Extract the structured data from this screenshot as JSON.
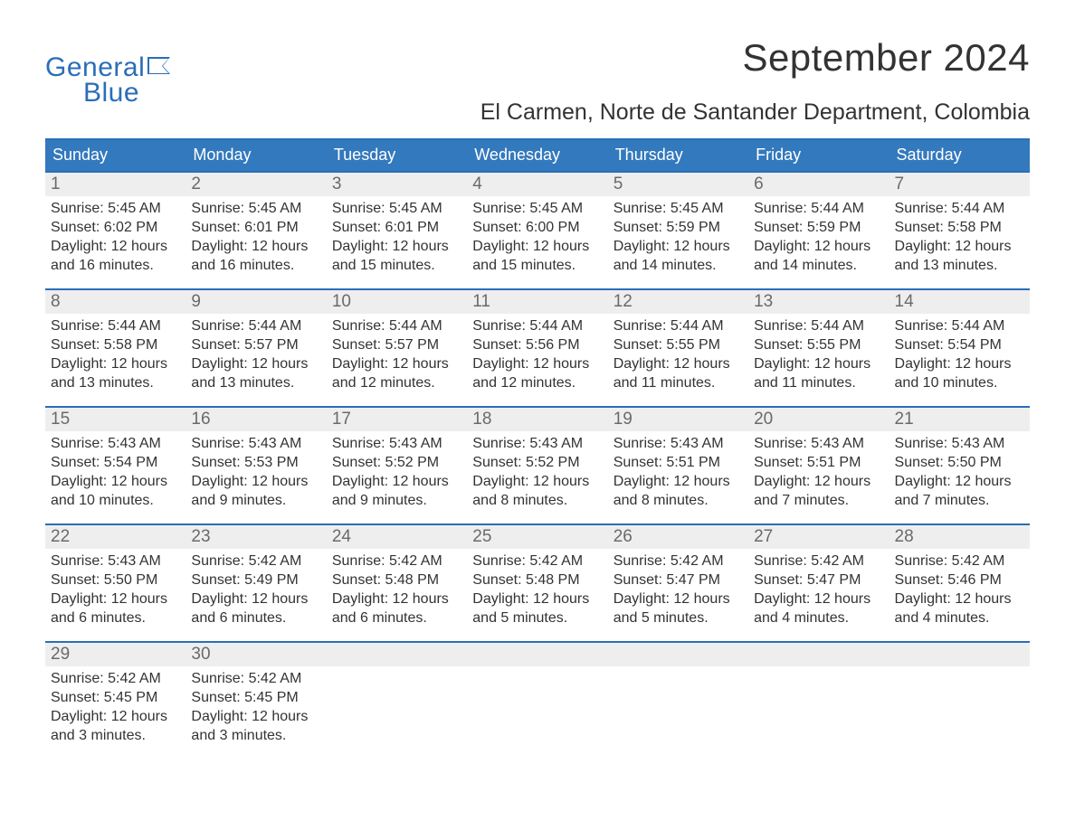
{
  "brand": {
    "name1": "General",
    "name2": "Blue",
    "color": "#2a6eb8"
  },
  "title": "September 2024",
  "location": "El Carmen, Norte de Santander Department, Colombia",
  "colors": {
    "header_bg": "#3379bd",
    "header_text": "#ffffff",
    "border": "#2a6eb8",
    "daynum_bg": "#eeeeee",
    "daynum_text": "#6a6a6a",
    "body_text": "#333333",
    "page_bg": "#ffffff"
  },
  "typography": {
    "title_fontsize": 42,
    "location_fontsize": 25,
    "weekday_fontsize": 18,
    "daynum_fontsize": 19,
    "body_fontsize": 16,
    "logo_fontsize": 30
  },
  "weekdays": [
    "Sunday",
    "Monday",
    "Tuesday",
    "Wednesday",
    "Thursday",
    "Friday",
    "Saturday"
  ],
  "weeks": [
    [
      {
        "n": "1",
        "sunrise": "Sunrise: 5:45 AM",
        "sunset": "Sunset: 6:02 PM",
        "d1": "Daylight: 12 hours",
        "d2": "and 16 minutes."
      },
      {
        "n": "2",
        "sunrise": "Sunrise: 5:45 AM",
        "sunset": "Sunset: 6:01 PM",
        "d1": "Daylight: 12 hours",
        "d2": "and 16 minutes."
      },
      {
        "n": "3",
        "sunrise": "Sunrise: 5:45 AM",
        "sunset": "Sunset: 6:01 PM",
        "d1": "Daylight: 12 hours",
        "d2": "and 15 minutes."
      },
      {
        "n": "4",
        "sunrise": "Sunrise: 5:45 AM",
        "sunset": "Sunset: 6:00 PM",
        "d1": "Daylight: 12 hours",
        "d2": "and 15 minutes."
      },
      {
        "n": "5",
        "sunrise": "Sunrise: 5:45 AM",
        "sunset": "Sunset: 5:59 PM",
        "d1": "Daylight: 12 hours",
        "d2": "and 14 minutes."
      },
      {
        "n": "6",
        "sunrise": "Sunrise: 5:44 AM",
        "sunset": "Sunset: 5:59 PM",
        "d1": "Daylight: 12 hours",
        "d2": "and 14 minutes."
      },
      {
        "n": "7",
        "sunrise": "Sunrise: 5:44 AM",
        "sunset": "Sunset: 5:58 PM",
        "d1": "Daylight: 12 hours",
        "d2": "and 13 minutes."
      }
    ],
    [
      {
        "n": "8",
        "sunrise": "Sunrise: 5:44 AM",
        "sunset": "Sunset: 5:58 PM",
        "d1": "Daylight: 12 hours",
        "d2": "and 13 minutes."
      },
      {
        "n": "9",
        "sunrise": "Sunrise: 5:44 AM",
        "sunset": "Sunset: 5:57 PM",
        "d1": "Daylight: 12 hours",
        "d2": "and 13 minutes."
      },
      {
        "n": "10",
        "sunrise": "Sunrise: 5:44 AM",
        "sunset": "Sunset: 5:57 PM",
        "d1": "Daylight: 12 hours",
        "d2": "and 12 minutes."
      },
      {
        "n": "11",
        "sunrise": "Sunrise: 5:44 AM",
        "sunset": "Sunset: 5:56 PM",
        "d1": "Daylight: 12 hours",
        "d2": "and 12 minutes."
      },
      {
        "n": "12",
        "sunrise": "Sunrise: 5:44 AM",
        "sunset": "Sunset: 5:55 PM",
        "d1": "Daylight: 12 hours",
        "d2": "and 11 minutes."
      },
      {
        "n": "13",
        "sunrise": "Sunrise: 5:44 AM",
        "sunset": "Sunset: 5:55 PM",
        "d1": "Daylight: 12 hours",
        "d2": "and 11 minutes."
      },
      {
        "n": "14",
        "sunrise": "Sunrise: 5:44 AM",
        "sunset": "Sunset: 5:54 PM",
        "d1": "Daylight: 12 hours",
        "d2": "and 10 minutes."
      }
    ],
    [
      {
        "n": "15",
        "sunrise": "Sunrise: 5:43 AM",
        "sunset": "Sunset: 5:54 PM",
        "d1": "Daylight: 12 hours",
        "d2": "and 10 minutes."
      },
      {
        "n": "16",
        "sunrise": "Sunrise: 5:43 AM",
        "sunset": "Sunset: 5:53 PM",
        "d1": "Daylight: 12 hours",
        "d2": "and 9 minutes."
      },
      {
        "n": "17",
        "sunrise": "Sunrise: 5:43 AM",
        "sunset": "Sunset: 5:52 PM",
        "d1": "Daylight: 12 hours",
        "d2": "and 9 minutes."
      },
      {
        "n": "18",
        "sunrise": "Sunrise: 5:43 AM",
        "sunset": "Sunset: 5:52 PM",
        "d1": "Daylight: 12 hours",
        "d2": "and 8 minutes."
      },
      {
        "n": "19",
        "sunrise": "Sunrise: 5:43 AM",
        "sunset": "Sunset: 5:51 PM",
        "d1": "Daylight: 12 hours",
        "d2": "and 8 minutes."
      },
      {
        "n": "20",
        "sunrise": "Sunrise: 5:43 AM",
        "sunset": "Sunset: 5:51 PM",
        "d1": "Daylight: 12 hours",
        "d2": "and 7 minutes."
      },
      {
        "n": "21",
        "sunrise": "Sunrise: 5:43 AM",
        "sunset": "Sunset: 5:50 PM",
        "d1": "Daylight: 12 hours",
        "d2": "and 7 minutes."
      }
    ],
    [
      {
        "n": "22",
        "sunrise": "Sunrise: 5:43 AM",
        "sunset": "Sunset: 5:50 PM",
        "d1": "Daylight: 12 hours",
        "d2": "and 6 minutes."
      },
      {
        "n": "23",
        "sunrise": "Sunrise: 5:42 AM",
        "sunset": "Sunset: 5:49 PM",
        "d1": "Daylight: 12 hours",
        "d2": "and 6 minutes."
      },
      {
        "n": "24",
        "sunrise": "Sunrise: 5:42 AM",
        "sunset": "Sunset: 5:48 PM",
        "d1": "Daylight: 12 hours",
        "d2": "and 6 minutes."
      },
      {
        "n": "25",
        "sunrise": "Sunrise: 5:42 AM",
        "sunset": "Sunset: 5:48 PM",
        "d1": "Daylight: 12 hours",
        "d2": "and 5 minutes."
      },
      {
        "n": "26",
        "sunrise": "Sunrise: 5:42 AM",
        "sunset": "Sunset: 5:47 PM",
        "d1": "Daylight: 12 hours",
        "d2": "and 5 minutes."
      },
      {
        "n": "27",
        "sunrise": "Sunrise: 5:42 AM",
        "sunset": "Sunset: 5:47 PM",
        "d1": "Daylight: 12 hours",
        "d2": "and 4 minutes."
      },
      {
        "n": "28",
        "sunrise": "Sunrise: 5:42 AM",
        "sunset": "Sunset: 5:46 PM",
        "d1": "Daylight: 12 hours",
        "d2": "and 4 minutes."
      }
    ],
    [
      {
        "n": "29",
        "sunrise": "Sunrise: 5:42 AM",
        "sunset": "Sunset: 5:45 PM",
        "d1": "Daylight: 12 hours",
        "d2": "and 3 minutes."
      },
      {
        "n": "30",
        "sunrise": "Sunrise: 5:42 AM",
        "sunset": "Sunset: 5:45 PM",
        "d1": "Daylight: 12 hours",
        "d2": "and 3 minutes."
      },
      {
        "n": "",
        "sunrise": "",
        "sunset": "",
        "d1": "",
        "d2": ""
      },
      {
        "n": "",
        "sunrise": "",
        "sunset": "",
        "d1": "",
        "d2": ""
      },
      {
        "n": "",
        "sunrise": "",
        "sunset": "",
        "d1": "",
        "d2": ""
      },
      {
        "n": "",
        "sunrise": "",
        "sunset": "",
        "d1": "",
        "d2": ""
      },
      {
        "n": "",
        "sunrise": "",
        "sunset": "",
        "d1": "",
        "d2": ""
      }
    ]
  ]
}
